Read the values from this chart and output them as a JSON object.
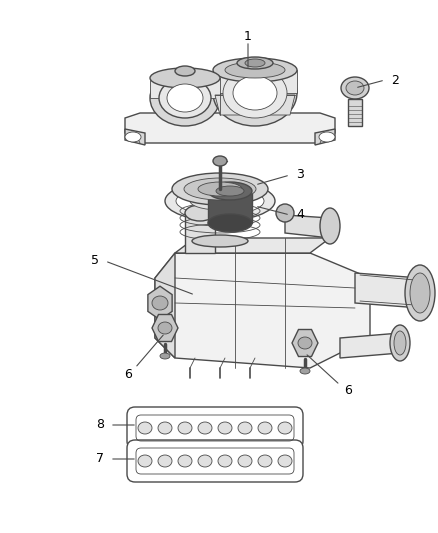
{
  "bg_color": "#ffffff",
  "line_color": "#4a4a4a",
  "label_color": "#000000",
  "lw_main": 1.0,
  "lw_thin": 0.6,
  "lw_thick": 1.4
}
